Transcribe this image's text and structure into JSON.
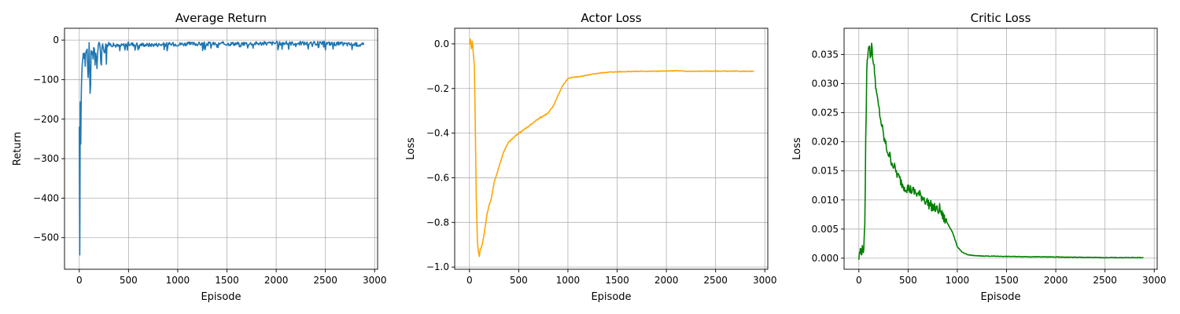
{
  "chart_data": [
    {
      "type": "line",
      "title": "Average Return",
      "xlabel": "Episode",
      "ylabel": "Return",
      "xlim": [
        -150,
        3030
      ],
      "ylim": [
        -580,
        30
      ],
      "xticks": [
        0,
        500,
        1000,
        1500,
        2000,
        2500,
        3000
      ],
      "xtick_labels": [
        "0",
        "500",
        "1000",
        "1500",
        "2000",
        "2500",
        "3000"
      ],
      "yticks": [
        0,
        -100,
        -200,
        -300,
        -400,
        -500
      ],
      "ytick_labels": [
        "0",
        "−100",
        "−200",
        "−300",
        "−400",
        "−500"
      ],
      "grid": true,
      "color": "#1f77b4",
      "series": [
        {
          "x": [
            0,
            5,
            10,
            15,
            20,
            25,
            30,
            40,
            50,
            60,
            70,
            80,
            90,
            100,
            110,
            120,
            140,
            160,
            180,
            200,
            250,
            300,
            400,
            500,
            700,
            1000,
            1500,
            2000,
            2500,
            2890
          ],
          "y": [
            -230,
            -555,
            -160,
            -260,
            -130,
            -80,
            -60,
            -40,
            -30,
            -70,
            -25,
            -20,
            -100,
            -15,
            -140,
            -20,
            -40,
            -15,
            -60,
            -10,
            -20,
            -10,
            -15,
            -10,
            -12,
            -10,
            -9,
            -8,
            -8,
            -12
          ]
        }
      ]
    },
    {
      "type": "line",
      "title": "Actor Loss",
      "xlabel": "Episode",
      "ylabel": "Loss",
      "xlim": [
        -150,
        3030
      ],
      "ylim": [
        -1.01,
        0.07
      ],
      "xticks": [
        0,
        500,
        1000,
        1500,
        2000,
        2500,
        3000
      ],
      "xtick_labels": [
        "0",
        "500",
        "1000",
        "1500",
        "2000",
        "2500",
        "3000"
      ],
      "yticks": [
        0.0,
        -0.2,
        -0.4,
        -0.6,
        -0.8,
        -1.0
      ],
      "ytick_labels": [
        "0.0",
        "−0.2",
        "−0.4",
        "−0.6",
        "−0.8",
        "−1.0"
      ],
      "grid": true,
      "color": "#ffa500",
      "series": [
        {
          "x": [
            0,
            10,
            20,
            30,
            40,
            50,
            60,
            70,
            80,
            90,
            100,
            110,
            130,
            150,
            180,
            200,
            220,
            250,
            280,
            300,
            350,
            400,
            450,
            500,
            600,
            700,
            800,
            850,
            900,
            950,
            1000,
            1050,
            1100,
            1200,
            1300,
            1400,
            1500,
            1700,
            2000,
            2100,
            2200,
            2500,
            2890
          ],
          "y": [
            0.0,
            0.02,
            -0.02,
            0.01,
            -0.05,
            -0.1,
            -0.4,
            -0.7,
            -0.88,
            -0.93,
            -0.95,
            -0.92,
            -0.9,
            -0.85,
            -0.76,
            -0.72,
            -0.7,
            -0.62,
            -0.58,
            -0.55,
            -0.48,
            -0.44,
            -0.42,
            -0.4,
            -0.37,
            -0.335,
            -0.31,
            -0.28,
            -0.23,
            -0.185,
            -0.155,
            -0.15,
            -0.148,
            -0.14,
            -0.132,
            -0.127,
            -0.125,
            -0.123,
            -0.122,
            -0.12,
            -0.123,
            -0.122,
            -0.123
          ]
        }
      ]
    },
    {
      "type": "line",
      "title": "Critic Loss",
      "xlabel": "Episode",
      "ylabel": "Loss",
      "xlim": [
        -150,
        3030
      ],
      "ylim": [
        -0.0019,
        0.0395
      ],
      "xticks": [
        0,
        500,
        1000,
        1500,
        2000,
        2500,
        3000
      ],
      "xtick_labels": [
        "0",
        "500",
        "1000",
        "1500",
        "2000",
        "2500",
        "3000"
      ],
      "yticks": [
        0.0,
        0.005,
        0.01,
        0.015,
        0.02,
        0.025,
        0.03,
        0.035
      ],
      "ytick_labels": [
        "0.000",
        "0.005",
        "0.010",
        "0.015",
        "0.020",
        "0.025",
        "0.030",
        "0.035"
      ],
      "grid": true,
      "color": "#008000",
      "series": [
        {
          "x": [
            0,
            10,
            20,
            30,
            40,
            50,
            60,
            70,
            80,
            90,
            100,
            110,
            120,
            130,
            140,
            150,
            160,
            170,
            180,
            200,
            220,
            250,
            280,
            300,
            350,
            400,
            450,
            500,
            550,
            600,
            650,
            700,
            750,
            800,
            820,
            850,
            900,
            950,
            1000,
            1050,
            1100,
            1200,
            1500,
            2000,
            2500,
            2890
          ],
          "y": [
            0.0,
            0.001,
            0.0015,
            0.0012,
            0.0015,
            0.0018,
            0.005,
            0.02,
            0.032,
            0.035,
            0.037,
            0.036,
            0.034,
            0.037,
            0.035,
            0.033,
            0.032,
            0.03,
            0.028,
            0.026,
            0.024,
            0.021,
            0.019,
            0.018,
            0.016,
            0.014,
            0.0125,
            0.012,
            0.0115,
            0.011,
            0.0105,
            0.0095,
            0.0088,
            0.0082,
            0.0085,
            0.0072,
            0.006,
            0.0045,
            0.002,
            0.001,
            0.0006,
            0.0004,
            0.0003,
            0.0002,
            0.0001,
            0.0001
          ]
        }
      ]
    }
  ]
}
